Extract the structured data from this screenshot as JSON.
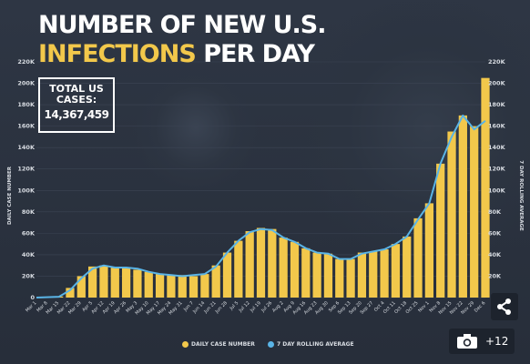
{
  "title_line1": "NUMBER OF NEW U.S.",
  "title_line2_highlight": "INFECTIONS",
  "title_line2_rest": "PER DAY",
  "total_label": "TOTAL US CASES:",
  "total_value": "14,367,459",
  "photo_count": "+12",
  "icons": {
    "share": "share-icon",
    "camera": "camera-icon"
  },
  "colors": {
    "bars": "#f2c84b",
    "line": "#5ab4e6",
    "highlight": "#f2c84b"
  },
  "chart_data": {
    "type": "bar",
    "ylabel_left": "DAILY CASE NUMBER",
    "ylabel_right": "7 DAY ROLLING AVERAGE",
    "ylim": [
      0,
      220000
    ],
    "yticks": [
      0,
      20000,
      40000,
      60000,
      80000,
      100000,
      120000,
      140000,
      160000,
      180000,
      200000,
      220000
    ],
    "ytick_labels": [
      "0",
      "20K",
      "40K",
      "60K",
      "80K",
      "100K",
      "120K",
      "140K",
      "160K",
      "180K",
      "200K",
      "220K"
    ],
    "legend": [
      "DAILY CASE NUMBER",
      "7 DAY ROLLING AVERAGE"
    ],
    "legend_position": "bottom",
    "x_start": "2020-03-01",
    "x_end": "2020-12-06",
    "x_tick_labels": [
      "Mar 1",
      "Mar 8",
      "Mar 15",
      "Mar 22",
      "Mar 29",
      "Apr 5",
      "Apr 12",
      "Apr 19",
      "Apr 26",
      "May 3",
      "May 10",
      "May 17",
      "May 24",
      "May 31",
      "Jun 7",
      "Jun 14",
      "Jun 21",
      "Jun 28",
      "Jul 5",
      "Jul 12",
      "Jul 19",
      "Jul 26",
      "Aug 2",
      "Aug 9",
      "Aug 16",
      "Aug 23",
      "Aug 30",
      "Sep 6",
      "Sep 13",
      "Sep 20",
      "Sep 27",
      "Oct 4",
      "Oct 11",
      "Oct 18",
      "Oct 25",
      "Nov 1",
      "Nov 8",
      "Nov 15",
      "Nov 22",
      "Nov 29",
      "Dec 6"
    ],
    "series": [
      {
        "name": "DAILY CASE NUMBER",
        "kind": "bar",
        "points": [
          [
            "2020-03-01",
            0
          ],
          [
            "2020-03-15",
            1000
          ],
          [
            "2020-03-22",
            9000
          ],
          [
            "2020-03-29",
            20000
          ],
          [
            "2020-04-05",
            29000
          ],
          [
            "2020-04-12",
            30000
          ],
          [
            "2020-04-19",
            28000
          ],
          [
            "2020-04-26",
            28000
          ],
          [
            "2020-05-03",
            26000
          ],
          [
            "2020-05-10",
            24000
          ],
          [
            "2020-05-17",
            22000
          ],
          [
            "2020-05-24",
            21000
          ],
          [
            "2020-05-31",
            21000
          ],
          [
            "2020-06-07",
            20000
          ],
          [
            "2020-06-14",
            22000
          ],
          [
            "2020-06-21",
            30000
          ],
          [
            "2020-06-28",
            42000
          ],
          [
            "2020-07-05",
            53000
          ],
          [
            "2020-07-12",
            62000
          ],
          [
            "2020-07-19",
            65000
          ],
          [
            "2020-07-26",
            64000
          ],
          [
            "2020-08-02",
            56000
          ],
          [
            "2020-08-09",
            52000
          ],
          [
            "2020-08-16",
            46000
          ],
          [
            "2020-08-23",
            42000
          ],
          [
            "2020-08-30",
            41000
          ],
          [
            "2020-09-06",
            36000
          ],
          [
            "2020-09-13",
            36000
          ],
          [
            "2020-09-20",
            42000
          ],
          [
            "2020-09-27",
            43000
          ],
          [
            "2020-10-04",
            45000
          ],
          [
            "2020-10-11",
            50000
          ],
          [
            "2020-10-18",
            57000
          ],
          [
            "2020-10-25",
            74000
          ],
          [
            "2020-11-01",
            88000
          ],
          [
            "2020-11-08",
            125000
          ],
          [
            "2020-11-15",
            155000
          ],
          [
            "2020-11-22",
            170000
          ],
          [
            "2020-11-29",
            160000
          ],
          [
            "2020-12-06",
            205000
          ]
        ]
      },
      {
        "name": "7 DAY ROLLING AVERAGE",
        "kind": "line",
        "points": [
          [
            "2020-03-01",
            0
          ],
          [
            "2020-03-15",
            800
          ],
          [
            "2020-03-22",
            7000
          ],
          [
            "2020-03-29",
            18000
          ],
          [
            "2020-04-05",
            27000
          ],
          [
            "2020-04-12",
            30000
          ],
          [
            "2020-04-19",
            28000
          ],
          [
            "2020-04-26",
            28000
          ],
          [
            "2020-05-03",
            27000
          ],
          [
            "2020-05-10",
            24000
          ],
          [
            "2020-05-17",
            22000
          ],
          [
            "2020-05-24",
            21000
          ],
          [
            "2020-05-31",
            20000
          ],
          [
            "2020-06-07",
            21000
          ],
          [
            "2020-06-14",
            22000
          ],
          [
            "2020-06-21",
            29000
          ],
          [
            "2020-06-28",
            42000
          ],
          [
            "2020-07-05",
            53000
          ],
          [
            "2020-07-12",
            61000
          ],
          [
            "2020-07-19",
            64000
          ],
          [
            "2020-07-26",
            63000
          ],
          [
            "2020-08-02",
            56000
          ],
          [
            "2020-08-09",
            52000
          ],
          [
            "2020-08-16",
            46000
          ],
          [
            "2020-08-23",
            42000
          ],
          [
            "2020-08-30",
            41000
          ],
          [
            "2020-09-06",
            36000
          ],
          [
            "2020-09-13",
            36000
          ],
          [
            "2020-09-20",
            41000
          ],
          [
            "2020-09-27",
            43000
          ],
          [
            "2020-10-04",
            45000
          ],
          [
            "2020-10-11",
            50000
          ],
          [
            "2020-10-18",
            57000
          ],
          [
            "2020-10-25",
            73000
          ],
          [
            "2020-11-01",
            88000
          ],
          [
            "2020-11-08",
            125000
          ],
          [
            "2020-11-15",
            150000
          ],
          [
            "2020-11-22",
            170000
          ],
          [
            "2020-11-29",
            157000
          ],
          [
            "2020-12-06",
            165000
          ]
        ]
      }
    ]
  }
}
